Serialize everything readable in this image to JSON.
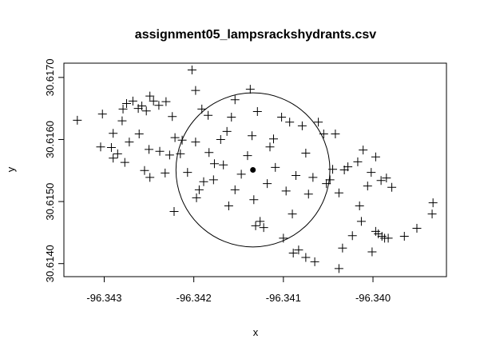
{
  "chart_data": {
    "type": "scatter",
    "title": "assignment05_lampsrackshydrants.csv",
    "xlabel": "x",
    "ylabel": "y",
    "color": "#000000",
    "xlim": [
      -96.34345,
      -96.33918
    ],
    "ylim": [
      30.61379,
      30.61723
    ],
    "xticks": [
      -96.343,
      -96.342,
      -96.341,
      {
        "value": -96.34,
        "label": "-96.340"
      }
    ],
    "yticks": [
      {
        "value": 30.614,
        "label": "30.6140"
      },
      {
        "value": 30.615,
        "label": "30.6150"
      },
      {
        "value": 30.616,
        "label": "30.6160"
      },
      {
        "value": 30.617,
        "label": "30.6170"
      }
    ],
    "circle": {
      "x": -96.34134,
      "y": 30.61551,
      "radius": 0.000859
    },
    "x": [
      -96.3433,
      -96.34304,
      -96.34302,
      -96.34292,
      -96.3429,
      -96.3429,
      -96.34285,
      -96.3428,
      -96.34279,
      -96.34277,
      -96.34275,
      -96.34272,
      -96.34268,
      -96.34262,
      -96.34258,
      -96.34261,
      -96.34253,
      -96.3425,
      -96.34249,
      -96.34245,
      -96.34239,
      -96.34231,
      -96.34255,
      -96.34249,
      -96.34238,
      -96.34232,
      -96.34224,
      -96.34221,
      -96.34222,
      -96.34215,
      -96.34207,
      -96.34202,
      -96.34198,
      -96.34191,
      -96.34184,
      -96.34189,
      -96.34183,
      -96.34177,
      -96.3417,
      -96.34167,
      -96.34163,
      -96.34161,
      -96.34154,
      -96.34147,
      -96.3414,
      -96.34137,
      -96.34135,
      -96.34129,
      -96.34126,
      -96.34122,
      -96.34118,
      -96.34115,
      -96.34109,
      -96.34102,
      -96.341,
      -96.34097,
      -96.3409,
      -96.34086,
      -96.34079,
      -96.34075,
      -96.34072,
      -96.34067,
      -96.34061,
      -96.34055,
      -96.34052,
      -96.34045,
      -96.34042,
      -96.34038,
      -96.34032,
      -96.34017,
      -96.34011,
      -96.34006,
      -96.33997,
      -96.33991,
      -96.33979,
      -96.34015,
      -96.34013,
      -96.34023,
      -96.33997,
      -96.33994,
      -96.3399,
      -96.33987,
      -96.33983,
      -96.33965,
      -96.33951,
      -96.33934,
      -96.33933,
      -96.34001,
      -96.34034,
      -96.34038,
      -96.34065,
      -96.34075,
      -96.34083,
      -96.34089,
      -96.34131,
      -96.34133,
      -96.34197,
      -96.34194,
      -96.34154,
      -96.34178,
      -96.34213,
      -96.34198,
      -96.34158,
      -96.34227,
      -96.34111,
      -96.34093,
      -96.34048,
      -96.34028,
      -96.34002,
      -96.33985
    ],
    "y": [
      30.61631,
      30.61588,
      30.61641,
      30.61587,
      30.6157,
      30.6161,
      30.61577,
      30.6163,
      30.61649,
      30.61563,
      30.61658,
      30.61596,
      30.61662,
      30.6165,
      30.61654,
      30.61609,
      30.61646,
      30.61584,
      30.6167,
      30.61662,
      30.61655,
      30.61661,
      30.6155,
      30.61539,
      30.61581,
      30.61546,
      30.61637,
      30.61603,
      30.61484,
      30.61577,
      30.61547,
      30.61712,
      30.61679,
      30.61649,
      30.61639,
      30.61532,
      30.61579,
      30.61561,
      30.616,
      30.61559,
      30.61613,
      30.61493,
      30.61664,
      30.61544,
      30.61574,
      30.61681,
      30.61606,
      30.61645,
      30.61468,
      30.61458,
      30.61529,
      30.61588,
      30.61555,
      30.61636,
      30.61441,
      30.61517,
      30.6148,
      30.61542,
      30.61622,
      30.61578,
      30.61512,
      30.61539,
      30.61628,
      30.61609,
      30.61529,
      30.61552,
      30.61609,
      30.61514,
      30.61551,
      30.61564,
      30.61583,
      30.61525,
      30.61572,
      30.61534,
      30.61523,
      30.61493,
      30.61468,
      30.61445,
      30.61452,
      30.61448,
      30.61444,
      30.61441,
      30.61441,
      30.61444,
      30.61457,
      30.6148,
      30.61498,
      30.61419,
      30.61425,
      30.61392,
      30.61403,
      30.6141,
      30.61422,
      30.61417,
      30.61461,
      30.61503,
      30.61506,
      30.61519,
      30.61519,
      30.61535,
      30.61599,
      30.61596,
      30.61636,
      30.61575,
      30.61601,
      30.61628,
      30.61535,
      30.61556,
      30.61547,
      30.61538
    ]
  }
}
